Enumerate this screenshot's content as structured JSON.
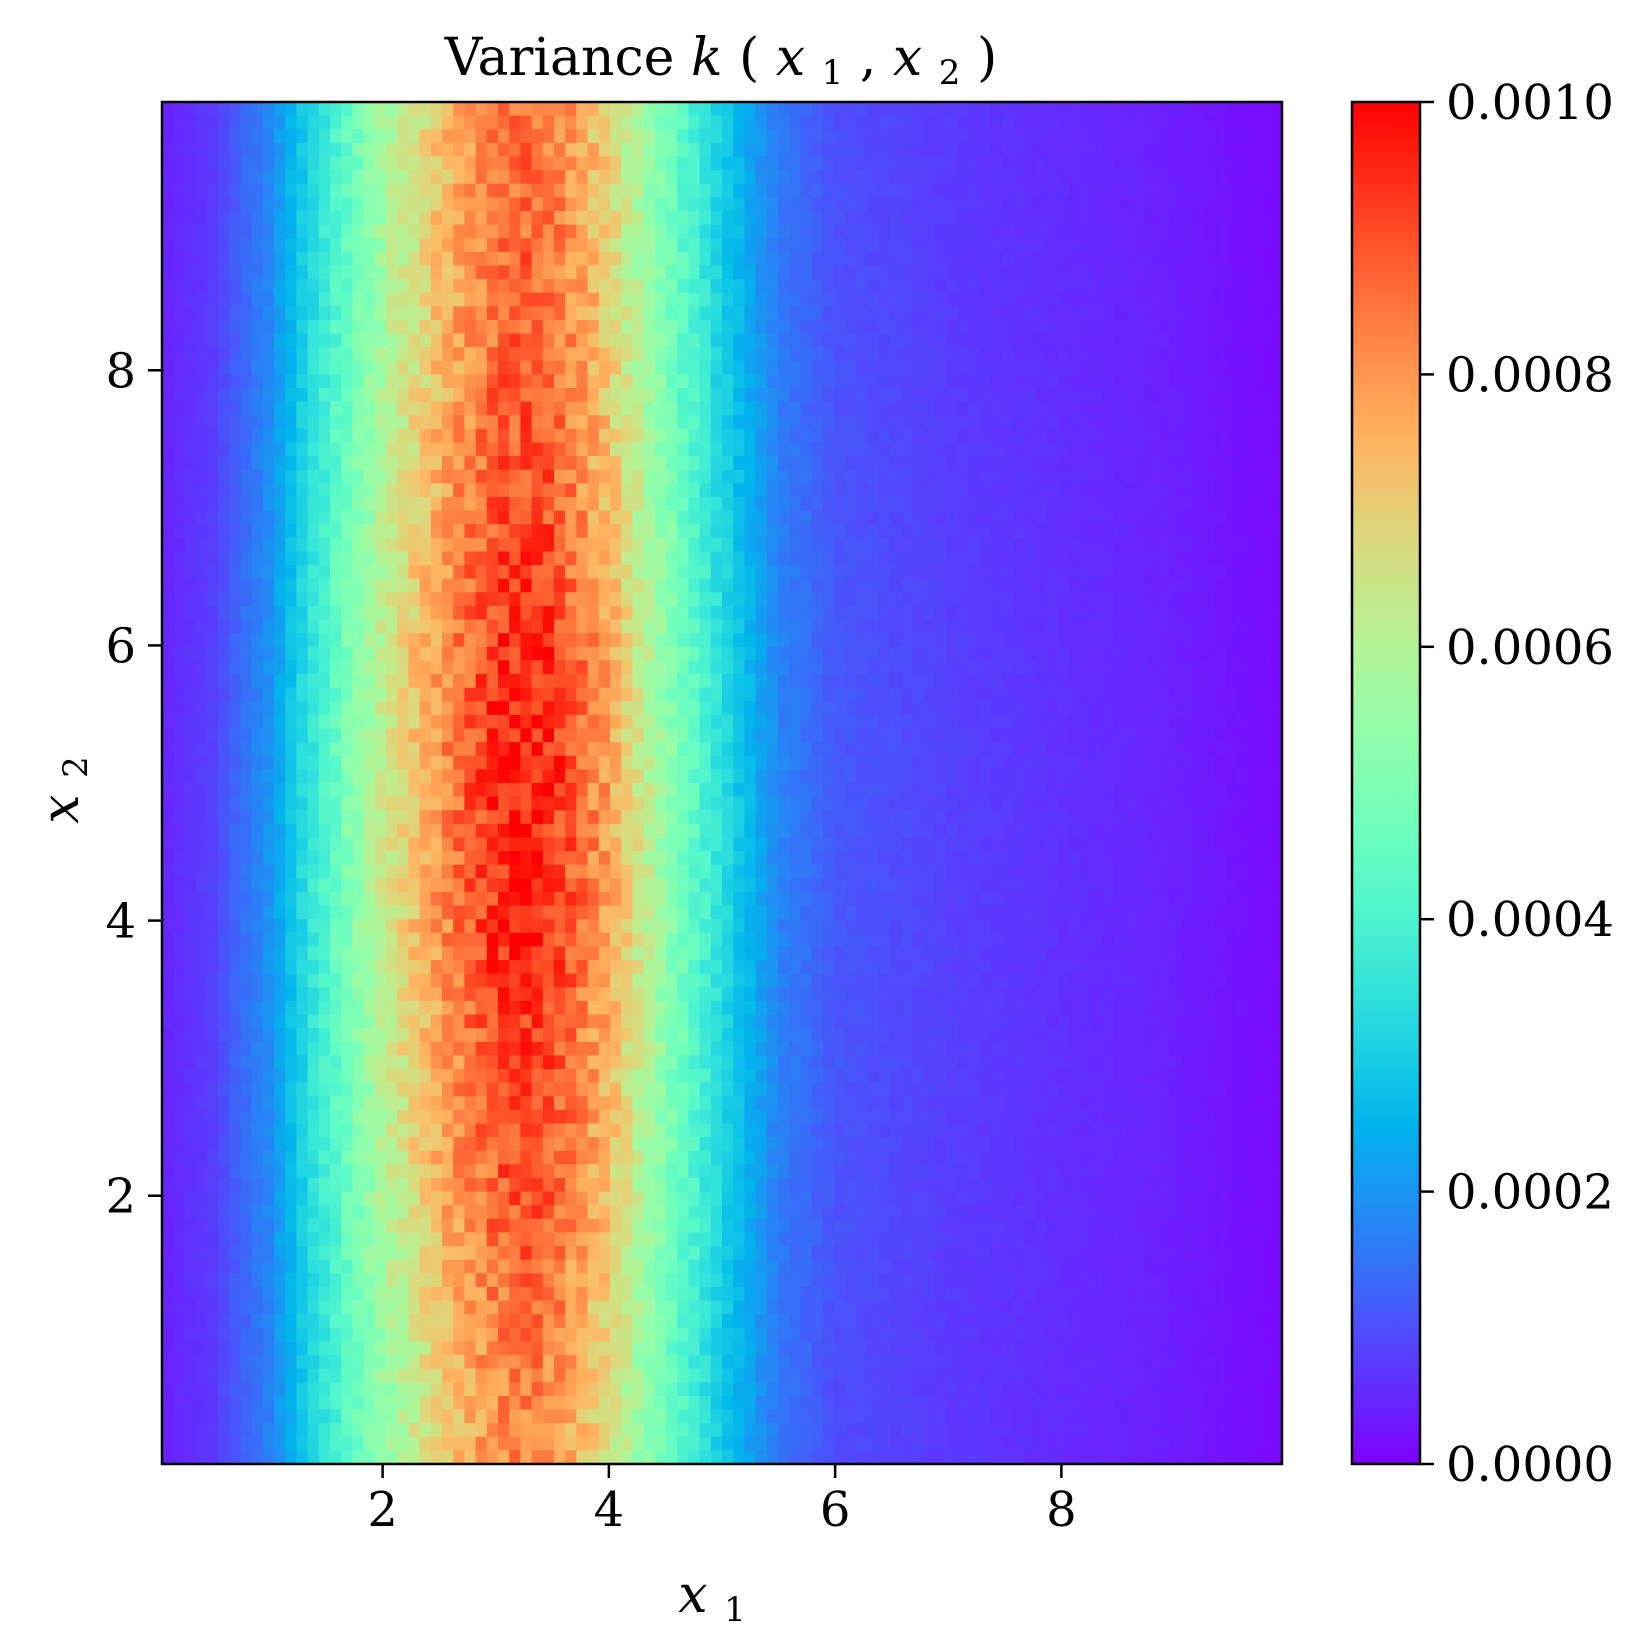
{
  "chart_data": {
    "type": "heatmap",
    "title": {
      "prefix": "Variance ",
      "k": "k",
      "open": "(",
      "x1": "x",
      "sub1": "1",
      "comma": ", ",
      "x2": "x",
      "sub2": "2",
      "close": ")"
    },
    "xlabel": {
      "base": "x",
      "sub": "1"
    },
    "ylabel": {
      "base": "x",
      "sub": "2"
    },
    "xlim": [
      0.05,
      9.95
    ],
    "ylim": [
      0.05,
      9.95
    ],
    "xticks": [
      {
        "value": 2,
        "label": "2"
      },
      {
        "value": 4,
        "label": "4"
      },
      {
        "value": 6,
        "label": "6"
      },
      {
        "value": 8,
        "label": "8"
      }
    ],
    "yticks": [
      {
        "value": 2,
        "label": "2"
      },
      {
        "value": 4,
        "label": "4"
      },
      {
        "value": 6,
        "label": "6"
      },
      {
        "value": 8,
        "label": "8"
      }
    ],
    "colormap": "rainbow",
    "colorbar": {
      "vmin": 0.0,
      "vmax": 0.001,
      "ticks": [
        {
          "value": 0.0,
          "label": "0.0000"
        },
        {
          "value": 0.0002,
          "label": "0.0002"
        },
        {
          "value": 0.0004,
          "label": "0.0004"
        },
        {
          "value": 0.0006,
          "label": "0.0006"
        },
        {
          "value": 0.0008,
          "label": "0.0008"
        },
        {
          "value": 0.001,
          "label": "0.0010"
        }
      ]
    },
    "grid_resolution": [
      100,
      100
    ],
    "column_profile": {
      "x": [
        0.0,
        0.5,
        1.0,
        1.5,
        2.0,
        2.5,
        3.0,
        3.25,
        3.5,
        4.0,
        4.5,
        5.0,
        5.5,
        6.0,
        7.0,
        8.0,
        9.0,
        10.0
      ],
      "value": [
        4e-05,
        8e-05,
        0.00019,
        0.0004,
        0.00061,
        0.00078,
        0.00091,
        0.00093,
        0.00091,
        0.00075,
        0.00052,
        0.00032,
        0.00017,
        0.00011,
        8e-05,
        6e-05,
        4e-05,
        1e-05
      ]
    },
    "row_modulation": {
      "y": [
        0,
        1,
        2,
        3,
        4,
        5,
        6,
        7,
        8,
        9,
        10
      ],
      "factor": [
        0.88,
        0.91,
        0.96,
        1.0,
        1.03,
        1.04,
        1.02,
        0.98,
        0.95,
        0.93,
        0.92
      ]
    },
    "grid": false
  }
}
